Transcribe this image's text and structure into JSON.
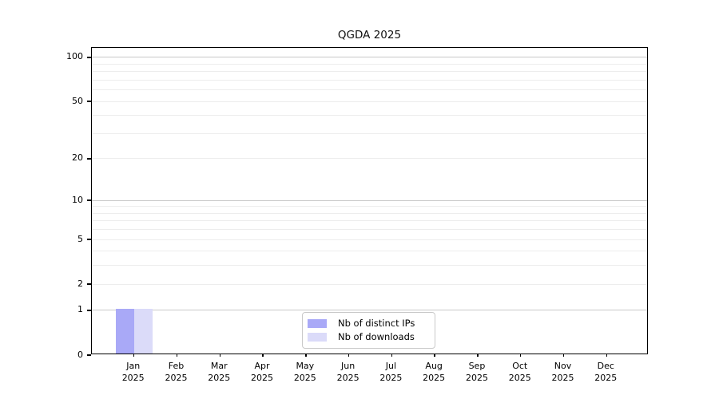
{
  "chart_data": {
    "type": "bar",
    "title": "QGDA 2025",
    "categories": [
      "Jan",
      "Feb",
      "Mar",
      "Apr",
      "May",
      "Jun",
      "Jul",
      "Aug",
      "Sep",
      "Oct",
      "Nov",
      "Dec"
    ],
    "year_label": "2025",
    "series": [
      {
        "name": "Nb of distinct IPs",
        "color": "#a9a9f7",
        "values": [
          1,
          0,
          0,
          0,
          0,
          0,
          0,
          0,
          0,
          0,
          0,
          0
        ]
      },
      {
        "name": "Nb of downloads",
        "color": "#dbdbf9",
        "values": [
          1,
          0,
          0,
          0,
          0,
          0,
          0,
          0,
          0,
          0,
          0,
          0
        ]
      }
    ],
    "yscale": "log1p",
    "ylim": [
      0,
      116
    ],
    "yticks": [
      0,
      1,
      2,
      5,
      10,
      20,
      50,
      100
    ],
    "grid": true,
    "grid_minor_values": [
      2,
      3,
      4,
      5,
      6,
      7,
      8,
      9,
      20,
      30,
      40,
      50,
      60,
      70,
      80,
      90
    ],
    "grid_major_values": [
      1,
      10,
      100
    ],
    "legend_position": "bottom-center",
    "colors": {
      "grid_minor": "#ededed",
      "grid_major": "#c8c8c8",
      "axis": "#000000"
    }
  }
}
